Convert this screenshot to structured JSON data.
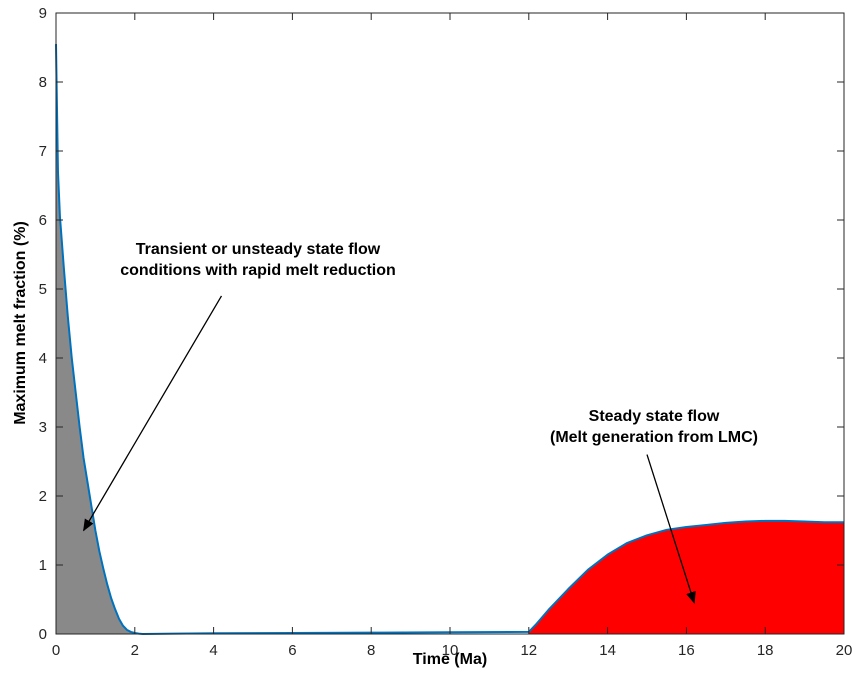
{
  "chart_data": {
    "type": "area",
    "xlabel": "Time (Ma)",
    "ylabel": "Maximum melt fraction (%)",
    "xlim": [
      0,
      20
    ],
    "ylim": [
      0,
      9
    ],
    "x_ticks": [
      "0",
      "2",
      "4",
      "6",
      "8",
      "10",
      "12",
      "14",
      "16",
      "18",
      "20"
    ],
    "y_ticks": [
      "0",
      "1",
      "2",
      "3",
      "4",
      "5",
      "6",
      "7",
      "8",
      "9"
    ],
    "grid": false,
    "box": true,
    "line_color": "#0072bd",
    "series": [
      {
        "x": [
          0,
          0.05,
          0.1,
          0.2,
          0.3,
          0.4,
          0.5,
          0.6,
          0.7,
          0.8,
          0.9,
          1.0,
          1.1,
          1.2,
          1.3,
          1.4,
          1.5,
          1.6,
          1.7,
          1.8,
          1.9,
          2.0,
          2.1,
          2.2,
          3,
          4,
          6,
          8,
          10,
          12,
          12.2,
          12.5,
          13,
          13.5,
          14,
          14.5,
          15,
          15.5,
          16,
          16.5,
          17,
          17.5,
          18,
          18.5,
          19,
          19.5,
          20
        ],
        "y": [
          8.55,
          6.7,
          6.05,
          5.3,
          4.6,
          4.0,
          3.5,
          3.0,
          2.55,
          2.2,
          1.85,
          1.5,
          1.2,
          0.95,
          0.72,
          0.52,
          0.36,
          0.22,
          0.12,
          0.06,
          0.03,
          0.015,
          0.005,
          0.0,
          0.005,
          0.01,
          0.015,
          0.02,
          0.025,
          0.03,
          0.15,
          0.35,
          0.65,
          0.93,
          1.15,
          1.32,
          1.43,
          1.51,
          1.55,
          1.58,
          1.61,
          1.63,
          1.64,
          1.64,
          1.63,
          1.62,
          1.62
        ]
      }
    ],
    "fills": [
      {
        "x_range": [
          0,
          2.2
        ],
        "color": "#898989"
      },
      {
        "x_range": [
          12,
          20
        ],
        "color": "#ff0000"
      }
    ],
    "annotations": [
      {
        "lines": [
          "Transient or unsteady state flow",
          "conditions with rapid melt reduction"
        ],
        "arrow_from": [
          4.2,
          4.9
        ],
        "arrow_to": [
          0.7,
          1.5
        ]
      },
      {
        "lines": [
          "Steady state flow",
          "(Melt generation from LMC)"
        ],
        "arrow_from": [
          15.0,
          2.6
        ],
        "arrow_to": [
          16.2,
          0.45
        ]
      }
    ]
  }
}
